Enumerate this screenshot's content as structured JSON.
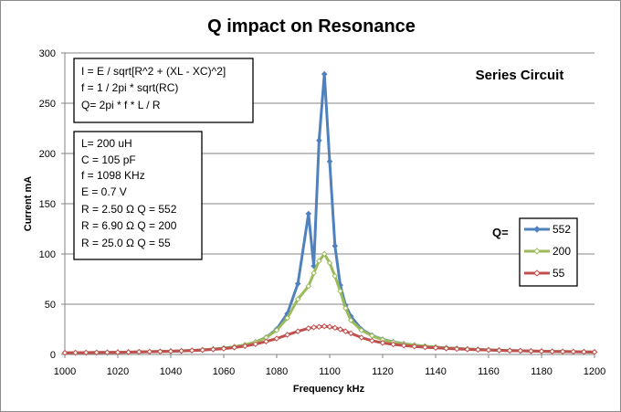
{
  "chart_data": {
    "type": "line",
    "title": "Q impact on Resonance",
    "xlabel": "Frequency kHz",
    "ylabel": "Current  mA",
    "xlim": [
      1000,
      1200
    ],
    "ylim": [
      0,
      300
    ],
    "xticks": [
      1000,
      1020,
      1040,
      1060,
      1080,
      1100,
      1120,
      1140,
      1160,
      1180,
      1200
    ],
    "yticks": [
      0,
      50,
      100,
      150,
      200,
      250,
      300
    ],
    "grid": "horizontal",
    "legend_title": "Q=",
    "legend_position": "right",
    "series": [
      {
        "name": "552",
        "color": "#4f81bd",
        "marker": "diamond",
        "x": [
          1000,
          1004,
          1008,
          1012,
          1016,
          1020,
          1024,
          1028,
          1032,
          1036,
          1040,
          1044,
          1048,
          1052,
          1056,
          1060,
          1064,
          1068,
          1072,
          1076,
          1080,
          1084,
          1088,
          1092,
          1094,
          1096,
          1098,
          1100,
          1102,
          1104,
          1106,
          1108,
          1112,
          1116,
          1120,
          1124,
          1128,
          1132,
          1136,
          1140,
          1144,
          1148,
          1152,
          1156,
          1160,
          1164,
          1168,
          1172,
          1176,
          1180,
          1184,
          1188,
          1192,
          1196,
          1200
        ],
        "y": [
          1.6,
          1.7,
          1.8,
          1.9,
          2.0,
          2.1,
          2.3,
          2.5,
          2.7,
          2.9,
          3.2,
          3.6,
          4.0,
          4.6,
          5.3,
          6.3,
          7.6,
          9.5,
          12.3,
          17.0,
          25.2,
          40.6,
          70.4,
          140,
          88,
          213,
          279,
          192,
          108,
          69,
          49,
          38,
          25,
          19,
          15,
          12.5,
          10.7,
          9.3,
          8.2,
          7.3,
          6.6,
          6.0,
          5.4,
          5.0,
          4.6,
          4.2,
          3.9,
          3.7,
          3.4,
          3.2,
          3.0,
          2.9,
          2.7,
          2.6,
          2.4
        ]
      },
      {
        "name": "200",
        "color": "#9bbb59",
        "marker": "diamond",
        "x": [
          1000,
          1004,
          1008,
          1012,
          1016,
          1020,
          1024,
          1028,
          1032,
          1036,
          1040,
          1044,
          1048,
          1052,
          1056,
          1060,
          1064,
          1068,
          1072,
          1076,
          1080,
          1084,
          1088,
          1092,
          1094,
          1096,
          1098,
          1100,
          1102,
          1104,
          1106,
          1108,
          1112,
          1116,
          1120,
          1124,
          1128,
          1132,
          1136,
          1140,
          1144,
          1148,
          1152,
          1156,
          1160,
          1164,
          1168,
          1172,
          1176,
          1180,
          1184,
          1188,
          1192,
          1196,
          1200
        ],
        "y": [
          1.6,
          1.7,
          1.8,
          1.9,
          2.0,
          2.1,
          2.3,
          2.5,
          2.7,
          2.9,
          3.2,
          3.6,
          4.0,
          4.6,
          5.3,
          6.3,
          7.6,
          9.5,
          12.3,
          16.8,
          24.1,
          36.2,
          55,
          68,
          81,
          93,
          100,
          91,
          78,
          63,
          46,
          34,
          24,
          18.6,
          14.6,
          12.2,
          10.5,
          9.2,
          8.1,
          7.2,
          6.5,
          5.9,
          5.4,
          4.9,
          4.5,
          4.2,
          3.9,
          3.6,
          3.4,
          3.2,
          3.0,
          2.9,
          2.7,
          2.6,
          2.4
        ]
      },
      {
        "name": "55",
        "color": "#c0504d",
        "marker": "diamond",
        "x": [
          1000,
          1004,
          1008,
          1012,
          1016,
          1020,
          1024,
          1028,
          1032,
          1036,
          1040,
          1044,
          1048,
          1052,
          1056,
          1060,
          1064,
          1068,
          1072,
          1076,
          1080,
          1084,
          1088,
          1092,
          1094,
          1096,
          1098,
          1100,
          1102,
          1104,
          1106,
          1108,
          1112,
          1116,
          1120,
          1124,
          1128,
          1132,
          1136,
          1140,
          1144,
          1148,
          1152,
          1156,
          1160,
          1164,
          1168,
          1172,
          1176,
          1180,
          1184,
          1188,
          1192,
          1196,
          1200
        ],
        "y": [
          1.6,
          1.7,
          1.8,
          1.9,
          2.0,
          2.1,
          2.3,
          2.5,
          2.7,
          2.9,
          3.2,
          3.5,
          3.9,
          4.4,
          5.0,
          5.8,
          6.9,
          8.3,
          10.3,
          12.9,
          15.8,
          19.5,
          23,
          26,
          27,
          27.5,
          28,
          27.5,
          26.5,
          25,
          23,
          21,
          16.8,
          13.7,
          11.5,
          10.0,
          8.9,
          8.0,
          7.2,
          6.6,
          6.0,
          5.5,
          5.1,
          4.7,
          4.4,
          4.1,
          3.8,
          3.6,
          3.4,
          3.2,
          3.0,
          2.8,
          2.7,
          2.5,
          2.4
        ]
      }
    ],
    "annotations": {
      "formulas": [
        "I = E / sqrt[R^2 + (XL - XC)^2]",
        "f = 1 / 2pi * sqrt(RC)",
        "Q= 2pi * f * L / R"
      ],
      "params": [
        "L= 200  uH",
        "C = 105  pF",
        "f =  1098  KHz",
        "E = 0.7  V",
        "R =  2.50  Ω   Q  = 552",
        "R =  6.90  Ω   Q  = 200",
        "R =  25.0  Ω   Q  =   55"
      ],
      "circuit_label": "Series Circuit"
    }
  }
}
